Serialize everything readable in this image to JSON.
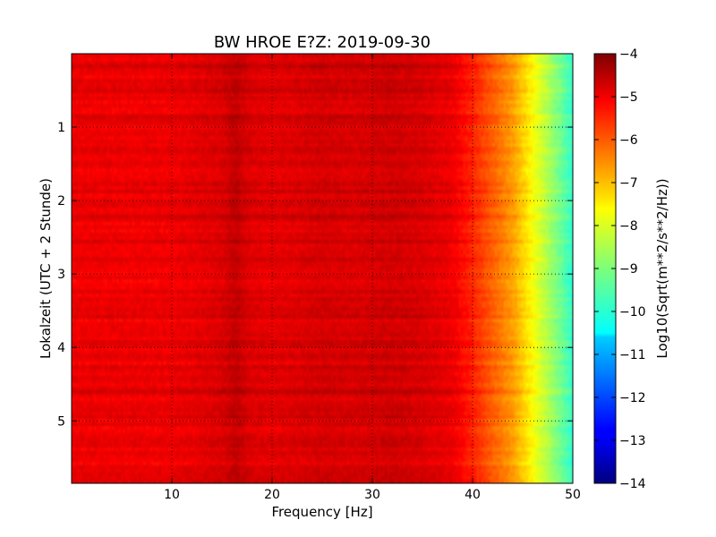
{
  "chart_data": {
    "type": "heatmap",
    "title": "BW HROE E?Z: 2019-09-30",
    "xlabel": "Frequency [Hz]",
    "ylabel": "Lokalzeit (UTC + 2 Stunde)",
    "colorbar_label": "Log10(Sqrt(m**2/s**2/Hz))",
    "xlim": [
      0,
      50
    ],
    "ylim": [
      5.85,
      0
    ],
    "y_inverted": true,
    "x_ticks": [
      10,
      20,
      30,
      40,
      50
    ],
    "x_tick_labels": [
      "10",
      "20",
      "30",
      "40",
      "50"
    ],
    "y_ticks": [
      1,
      2,
      3,
      4,
      5
    ],
    "y_tick_labels": [
      "1",
      "2",
      "3",
      "4",
      "5"
    ],
    "colorbar_ticks": [
      -4,
      -5,
      -6,
      -7,
      -8,
      -9,
      -10,
      -11,
      -12,
      -13,
      -14
    ],
    "colorbar_tick_labels": [
      "−4",
      "−5",
      "−6",
      "−7",
      "−8",
      "−9",
      "−10",
      "−11",
      "−12",
      "−13",
      "−14"
    ],
    "clim": [
      -14,
      -4
    ],
    "colormap": "jet",
    "grid": "dotted",
    "frequency_profile": {
      "frequency_hz": [
        0,
        5,
        10,
        13,
        15,
        16.5,
        17,
        18,
        20,
        22,
        25,
        28,
        30,
        32,
        35,
        38,
        40,
        42,
        44,
        45,
        46,
        47,
        48,
        49,
        50
      ],
      "log_amplitude": [
        -5.1,
        -5.1,
        -5.1,
        -5.0,
        -4.9,
        -4.65,
        -4.8,
        -4.95,
        -5.0,
        -4.95,
        -4.85,
        -4.9,
        -4.85,
        -4.8,
        -4.9,
        -5.1,
        -5.6,
        -6.2,
        -6.8,
        -7.3,
        -7.8,
        -8.3,
        -8.8,
        -9.3,
        -9.8
      ]
    }
  }
}
